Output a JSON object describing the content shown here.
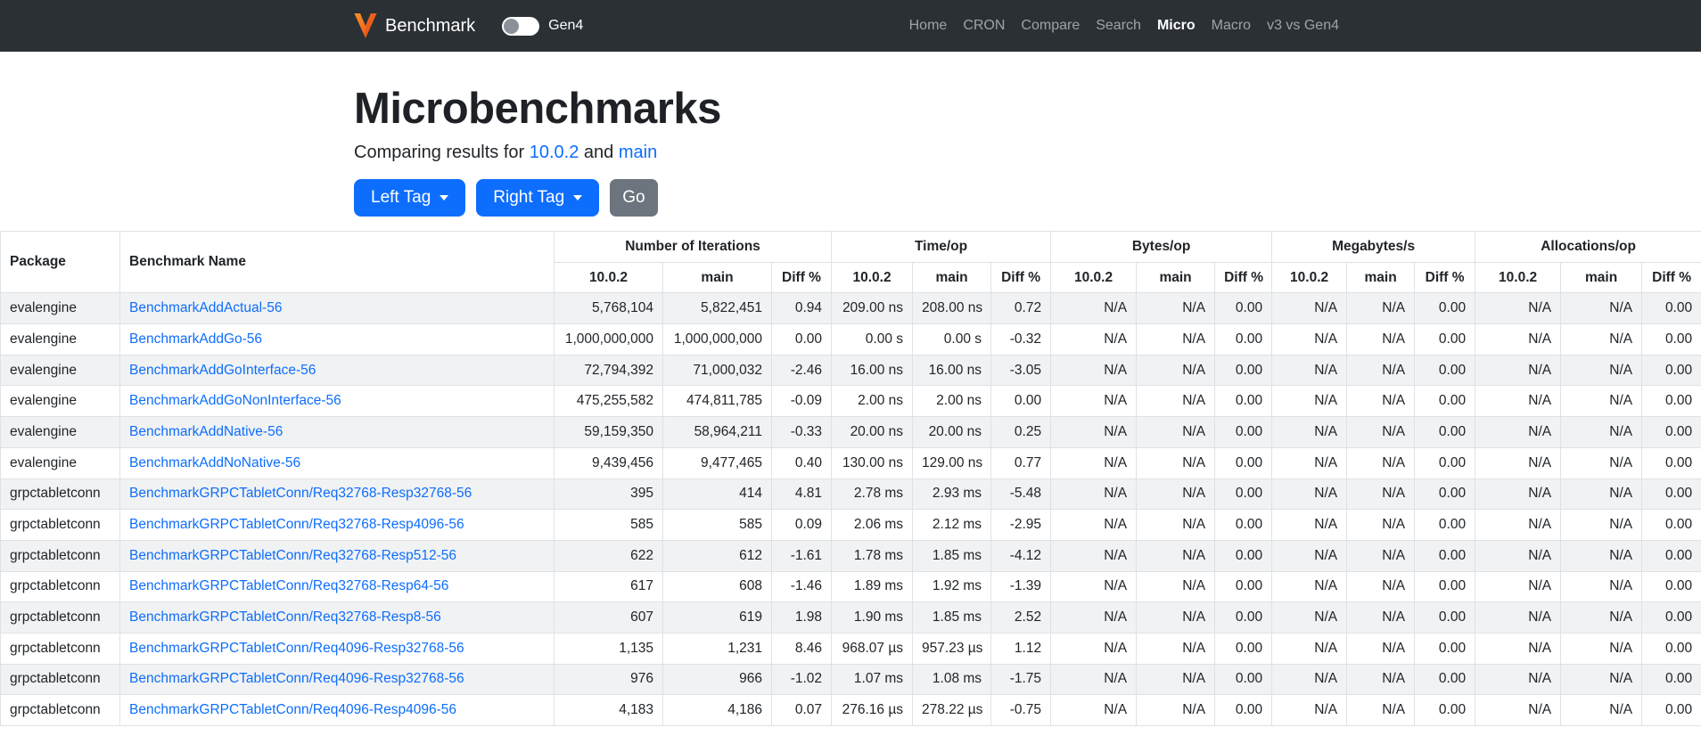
{
  "navbar": {
    "brand": "Benchmark",
    "toggle_label": "Gen4",
    "links": [
      {
        "label": "Home",
        "active": false
      },
      {
        "label": "CRON",
        "active": false
      },
      {
        "label": "Compare",
        "active": false
      },
      {
        "label": "Search",
        "active": false
      },
      {
        "label": "Micro",
        "active": true
      },
      {
        "label": "Macro",
        "active": false
      },
      {
        "label": "v3 vs Gen4",
        "active": false
      }
    ]
  },
  "header": {
    "title": "Microbenchmarks",
    "subtitle_prefix": "Comparing results for ",
    "left_ref": "10.0.2",
    "subtitle_and": " and ",
    "right_ref": "main"
  },
  "controls": {
    "left_tag_label": "Left Tag",
    "right_tag_label": "Right Tag",
    "go_label": "Go"
  },
  "colors": {
    "accent": "#0d6efd",
    "secondary": "#6c757d",
    "navbar_bg": "#2b3035",
    "logo_orange": "#f26b24",
    "logo_dark_orange": "#c43d08",
    "stripe": "#f1f2f3"
  },
  "table": {
    "package_header": "Package",
    "benchmark_header": "Benchmark Name",
    "groups": [
      "Number of Iterations",
      "Time/op",
      "Bytes/op",
      "Megabytes/s",
      "Allocations/op"
    ],
    "sub_headers": [
      "10.0.2",
      "main",
      "Diff %"
    ],
    "rows": [
      {
        "package": "evalengine",
        "name": "BenchmarkAddActual-56",
        "cells": [
          "5,768,104",
          "5,822,451",
          "0.94",
          "209.00 ns",
          "208.00 ns",
          "0.72",
          "N/A",
          "N/A",
          "0.00",
          "N/A",
          "N/A",
          "0.00",
          "N/A",
          "N/A",
          "0.00"
        ]
      },
      {
        "package": "evalengine",
        "name": "BenchmarkAddGo-56",
        "cells": [
          "1,000,000,000",
          "1,000,000,000",
          "0.00",
          "0.00 s",
          "0.00 s",
          "-0.32",
          "N/A",
          "N/A",
          "0.00",
          "N/A",
          "N/A",
          "0.00",
          "N/A",
          "N/A",
          "0.00"
        ]
      },
      {
        "package": "evalengine",
        "name": "BenchmarkAddGoInterface-56",
        "cells": [
          "72,794,392",
          "71,000,032",
          "-2.46",
          "16.00 ns",
          "16.00 ns",
          "-3.05",
          "N/A",
          "N/A",
          "0.00",
          "N/A",
          "N/A",
          "0.00",
          "N/A",
          "N/A",
          "0.00"
        ]
      },
      {
        "package": "evalengine",
        "name": "BenchmarkAddGoNonInterface-56",
        "cells": [
          "475,255,582",
          "474,811,785",
          "-0.09",
          "2.00 ns",
          "2.00 ns",
          "0.00",
          "N/A",
          "N/A",
          "0.00",
          "N/A",
          "N/A",
          "0.00",
          "N/A",
          "N/A",
          "0.00"
        ]
      },
      {
        "package": "evalengine",
        "name": "BenchmarkAddNative-56",
        "cells": [
          "59,159,350",
          "58,964,211",
          "-0.33",
          "20.00 ns",
          "20.00 ns",
          "0.25",
          "N/A",
          "N/A",
          "0.00",
          "N/A",
          "N/A",
          "0.00",
          "N/A",
          "N/A",
          "0.00"
        ]
      },
      {
        "package": "evalengine",
        "name": "BenchmarkAddNoNative-56",
        "cells": [
          "9,439,456",
          "9,477,465",
          "0.40",
          "130.00 ns",
          "129.00 ns",
          "0.77",
          "N/A",
          "N/A",
          "0.00",
          "N/A",
          "N/A",
          "0.00",
          "N/A",
          "N/A",
          "0.00"
        ]
      },
      {
        "package": "grpctabletconn",
        "name": "BenchmarkGRPCTabletConn/Req32768-Resp32768-56",
        "cells": [
          "395",
          "414",
          "4.81",
          "2.78 ms",
          "2.93 ms",
          "-5.48",
          "N/A",
          "N/A",
          "0.00",
          "N/A",
          "N/A",
          "0.00",
          "N/A",
          "N/A",
          "0.00"
        ]
      },
      {
        "package": "grpctabletconn",
        "name": "BenchmarkGRPCTabletConn/Req32768-Resp4096-56",
        "cells": [
          "585",
          "585",
          "0.09",
          "2.06 ms",
          "2.12 ms",
          "-2.95",
          "N/A",
          "N/A",
          "0.00",
          "N/A",
          "N/A",
          "0.00",
          "N/A",
          "N/A",
          "0.00"
        ]
      },
      {
        "package": "grpctabletconn",
        "name": "BenchmarkGRPCTabletConn/Req32768-Resp512-56",
        "cells": [
          "622",
          "612",
          "-1.61",
          "1.78 ms",
          "1.85 ms",
          "-4.12",
          "N/A",
          "N/A",
          "0.00",
          "N/A",
          "N/A",
          "0.00",
          "N/A",
          "N/A",
          "0.00"
        ]
      },
      {
        "package": "grpctabletconn",
        "name": "BenchmarkGRPCTabletConn/Req32768-Resp64-56",
        "cells": [
          "617",
          "608",
          "-1.46",
          "1.89 ms",
          "1.92 ms",
          "-1.39",
          "N/A",
          "N/A",
          "0.00",
          "N/A",
          "N/A",
          "0.00",
          "N/A",
          "N/A",
          "0.00"
        ]
      },
      {
        "package": "grpctabletconn",
        "name": "BenchmarkGRPCTabletConn/Req32768-Resp8-56",
        "cells": [
          "607",
          "619",
          "1.98",
          "1.90 ms",
          "1.85 ms",
          "2.52",
          "N/A",
          "N/A",
          "0.00",
          "N/A",
          "N/A",
          "0.00",
          "N/A",
          "N/A",
          "0.00"
        ]
      },
      {
        "package": "grpctabletconn",
        "name": "BenchmarkGRPCTabletConn/Req4096-Resp32768-56",
        "cells": [
          "1,135",
          "1,231",
          "8.46",
          "968.07 µs",
          "957.23 µs",
          "1.12",
          "N/A",
          "N/A",
          "0.00",
          "N/A",
          "N/A",
          "0.00",
          "N/A",
          "N/A",
          "0.00"
        ]
      },
      {
        "package": "grpctabletconn",
        "name": "BenchmarkGRPCTabletConn/Req4096-Resp32768-56",
        "cells": [
          "976",
          "966",
          "-1.02",
          "1.07 ms",
          "1.08 ms",
          "-1.75",
          "N/A",
          "N/A",
          "0.00",
          "N/A",
          "N/A",
          "0.00",
          "N/A",
          "N/A",
          "0.00"
        ]
      },
      {
        "package": "grpctabletconn",
        "name": "BenchmarkGRPCTabletConn/Req4096-Resp4096-56",
        "cells": [
          "4,183",
          "4,186",
          "0.07",
          "276.16 µs",
          "278.22 µs",
          "-0.75",
          "N/A",
          "N/A",
          "0.00",
          "N/A",
          "N/A",
          "0.00",
          "N/A",
          "N/A",
          "0.00"
        ]
      }
    ]
  }
}
